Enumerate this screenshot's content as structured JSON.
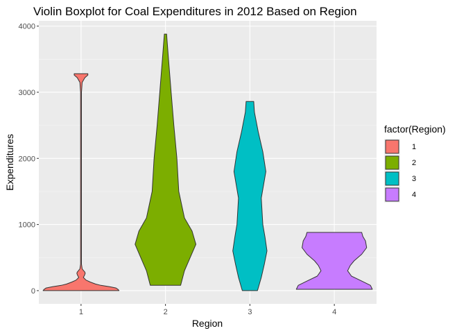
{
  "chart_data": {
    "type": "violin",
    "title": "Violin Boxplot for Coal Expenditures in 2012 Based on Region",
    "xlabel": "Region",
    "ylabel": "Expenditures",
    "categories": [
      "1",
      "2",
      "3",
      "4"
    ],
    "y_ticks": [
      0,
      1000,
      2000,
      3000,
      4000
    ],
    "ylim": [
      -200,
      4080
    ],
    "grid": true,
    "legend": {
      "title": "factor(Region)",
      "placement": "right",
      "entries": [
        "1",
        "2",
        "3",
        "4"
      ]
    },
    "series": [
      {
        "category": "1",
        "color": "#F8766D",
        "range": [
          0,
          3280
        ],
        "density": [
          [
            0,
            1.0
          ],
          [
            20,
            0.97
          ],
          [
            40,
            0.92
          ],
          [
            60,
            0.75
          ],
          [
            80,
            0.52
          ],
          [
            100,
            0.38
          ],
          [
            130,
            0.24
          ],
          [
            160,
            0.13
          ],
          [
            200,
            0.06
          ],
          [
            230,
            0.09
          ],
          [
            260,
            0.11
          ],
          [
            280,
            0.1
          ],
          [
            300,
            0.07
          ],
          [
            330,
            0.03
          ],
          [
            400,
            0.012
          ],
          [
            600,
            0.012
          ],
          [
            1000,
            0.012
          ],
          [
            2000,
            0.012
          ],
          [
            3000,
            0.012
          ],
          [
            3150,
            0.03
          ],
          [
            3220,
            0.1
          ],
          [
            3260,
            0.18
          ],
          [
            3280,
            0.18
          ]
        ]
      },
      {
        "category": "2",
        "color": "#7CAE00",
        "range": [
          80,
          3880
        ],
        "density": [
          [
            80,
            0.4
          ],
          [
            300,
            0.5
          ],
          [
            500,
            0.65
          ],
          [
            700,
            0.8
          ],
          [
            900,
            0.7
          ],
          [
            1100,
            0.5
          ],
          [
            1500,
            0.35
          ],
          [
            2000,
            0.3
          ],
          [
            2500,
            0.22
          ],
          [
            3000,
            0.15
          ],
          [
            3500,
            0.08
          ],
          [
            3800,
            0.04
          ],
          [
            3880,
            0.03
          ]
        ]
      },
      {
        "category": "3",
        "color": "#00BFC4",
        "range": [
          0,
          2860
        ],
        "density": [
          [
            0,
            0.2
          ],
          [
            200,
            0.3
          ],
          [
            400,
            0.38
          ],
          [
            600,
            0.45
          ],
          [
            800,
            0.4
          ],
          [
            1000,
            0.34
          ],
          [
            1400,
            0.3
          ],
          [
            1800,
            0.42
          ],
          [
            2100,
            0.34
          ],
          [
            2400,
            0.22
          ],
          [
            2700,
            0.12
          ],
          [
            2860,
            0.1
          ]
        ]
      },
      {
        "category": "4",
        "color": "#C77CFF",
        "range": [
          20,
          880
        ],
        "density": [
          [
            20,
            1.0
          ],
          [
            80,
            0.95
          ],
          [
            150,
            0.7
          ],
          [
            220,
            0.45
          ],
          [
            300,
            0.35
          ],
          [
            380,
            0.42
          ],
          [
            450,
            0.52
          ],
          [
            550,
            0.72
          ],
          [
            650,
            0.85
          ],
          [
            750,
            0.82
          ],
          [
            820,
            0.75
          ],
          [
            880,
            0.72
          ]
        ]
      }
    ]
  }
}
